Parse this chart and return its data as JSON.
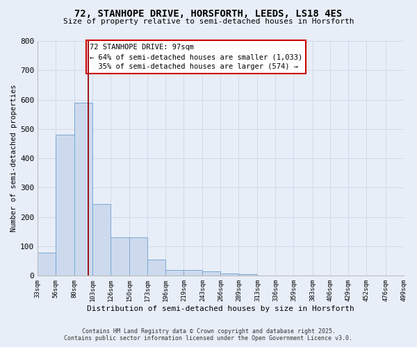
{
  "title_line1": "72, STANHOPE DRIVE, HORSFORTH, LEEDS, LS18 4ES",
  "title_line2": "Size of property relative to semi-detached houses in Horsforth",
  "xlabel": "Distribution of semi-detached houses by size in Horsforth",
  "ylabel": "Number of semi-detached properties",
  "bar_values": [
    80,
    480,
    590,
    245,
    130,
    130,
    55,
    20,
    20,
    15,
    8,
    5,
    0,
    0,
    0,
    0,
    0,
    0,
    0,
    0
  ],
  "bin_labels": [
    "33sqm",
    "56sqm",
    "80sqm",
    "103sqm",
    "126sqm",
    "150sqm",
    "173sqm",
    "196sqm",
    "219sqm",
    "243sqm",
    "266sqm",
    "289sqm",
    "313sqm",
    "336sqm",
    "359sqm",
    "383sqm",
    "406sqm",
    "429sqm",
    "452sqm",
    "476sqm",
    "499sqm"
  ],
  "bar_color": "#cddaee",
  "bar_edge_color": "#7aa8d0",
  "grid_color": "#d0daea",
  "bg_color": "#e8eef8",
  "property_size": 97,
  "red_line_color": "#990000",
  "annotation_text": "72 STANHOPE DRIVE: 97sqm\n← 64% of semi-detached houses are smaller (1,033)\n  35% of semi-detached houses are larger (574) →",
  "annotation_box_color": "#ffffff",
  "annotation_border_color": "#cc0000",
  "ylim": [
    0,
    800
  ],
  "yticks": [
    0,
    100,
    200,
    300,
    400,
    500,
    600,
    700,
    800
  ],
  "footnote_line1": "Contains HM Land Registry data © Crown copyright and database right 2025.",
  "footnote_line2": "Contains public sector information licensed under the Open Government Licence v3.0.",
  "bin_edges": [
    33,
    56,
    80,
    103,
    126,
    150,
    173,
    196,
    219,
    243,
    266,
    289,
    313,
    336,
    359,
    383,
    406,
    429,
    452,
    476,
    499
  ]
}
